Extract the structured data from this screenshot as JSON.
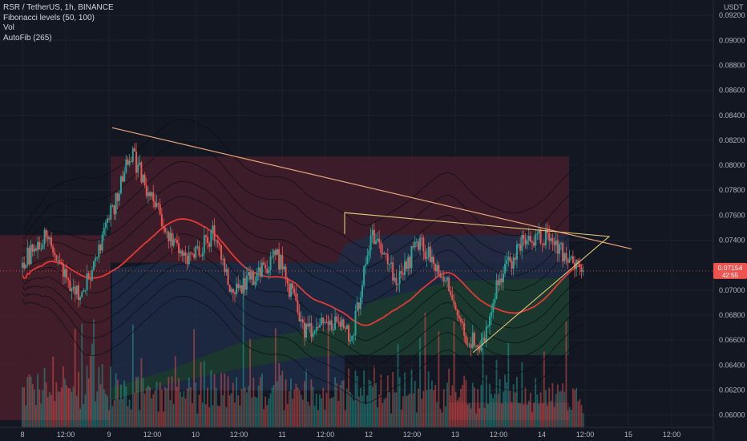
{
  "legend": {
    "symbol": "RSR / TetherUS, 1h, BINANCE",
    "indicator_1": "Fibonacci levels (50, 100)",
    "indicator_2": "Vol",
    "indicator_3": "AutoFib (265)"
  },
  "price_axis": {
    "currency": "USDT",
    "ticks": [
      "0.09200",
      "0.09000",
      "0.08800",
      "0.08600",
      "0.08400",
      "0.08200",
      "0.08000",
      "0.07800",
      "0.07600",
      "0.07400",
      "0.07000",
      "0.06800",
      "0.06600",
      "0.06400",
      "0.06200",
      "0.06000"
    ]
  },
  "last_price_badge": {
    "price": "0.07154",
    "countdown": "42:55"
  },
  "colors": {
    "background": "#131722",
    "candle_up": "#26a69a",
    "candle_down": "#ef5350",
    "fib_upper_zone": "#4a1f2b",
    "fib_mid_zone": "#1f2c45",
    "fib_lower_zone": "#1b3a2c",
    "ma_red": "#e53935",
    "trendline": "#e7a27a",
    "badge": "#ef5350"
  },
  "chart_data": {
    "type": "candlestick",
    "title": "RSR / TetherUS, 1h, BINANCE",
    "x_axis_labels": [
      "8",
      "12:00",
      "9",
      "12:00",
      "10",
      "12:00",
      "11",
      "12:00",
      "12",
      "12:00",
      "13",
      "12:00",
      "14",
      "12:00",
      "15",
      "12:00"
    ],
    "ylim": [
      0.0594,
      0.0922
    ],
    "y_unit": "USDT",
    "price_path_keypoints": [
      {
        "t": 0,
        "price": 0.0722
      },
      {
        "t": 14,
        "price": 0.0745
      },
      {
        "t": 24,
        "price": 0.0715
      },
      {
        "t": 34,
        "price": 0.0693
      },
      {
        "t": 56,
        "price": 0.0775
      },
      {
        "t": 64,
        "price": 0.081
      },
      {
        "t": 80,
        "price": 0.0762
      },
      {
        "t": 96,
        "price": 0.0722
      },
      {
        "t": 112,
        "price": 0.0745
      },
      {
        "t": 124,
        "price": 0.0698
      },
      {
        "t": 150,
        "price": 0.0728
      },
      {
        "t": 166,
        "price": 0.0668
      },
      {
        "t": 184,
        "price": 0.0675
      },
      {
        "t": 194,
        "price": 0.0665
      },
      {
        "t": 206,
        "price": 0.0745
      },
      {
        "t": 220,
        "price": 0.0708
      },
      {
        "t": 234,
        "price": 0.0738
      },
      {
        "t": 248,
        "price": 0.071
      },
      {
        "t": 260,
        "price": 0.0665
      },
      {
        "t": 270,
        "price": 0.0655
      },
      {
        "t": 280,
        "price": 0.071
      },
      {
        "t": 296,
        "price": 0.074
      },
      {
        "t": 310,
        "price": 0.0742
      },
      {
        "t": 320,
        "price": 0.0725
      },
      {
        "t": 330,
        "price": 0.07154
      }
    ],
    "last_price": 0.07154,
    "fib_levels": [
      0.0807,
      0.0744,
      0.0722,
      0.0702,
      0.0678,
      0.0648,
      0.061,
      0.0596
    ],
    "trendlines": [
      {
        "from": [
          0.083,
          "9 03:00"
        ],
        "to": [
          0.0733,
          "15 01:00"
        ]
      },
      {
        "from": [
          0.0762,
          "12 10:00"
        ],
        "to": [
          0.0743,
          "14 20:00"
        ]
      },
      {
        "from": [
          0.065,
          "13 02:00"
        ],
        "to": [
          0.0743,
          "14 20:00"
        ]
      }
    ],
    "volume_note": "Vol histogram at bottom of price pane"
  }
}
